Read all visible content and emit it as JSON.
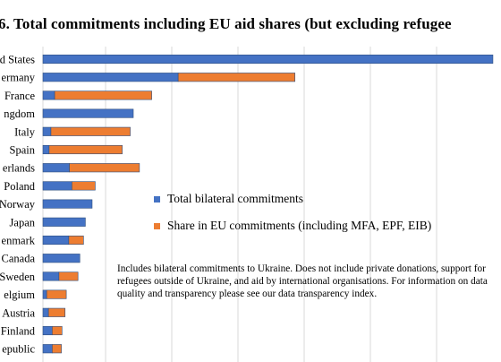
{
  "title": "6. Total commitments including EU aid shares (but excluding refugee",
  "legend": [
    {
      "label": "Total bilateral commitments",
      "color": "#4472C4"
    },
    {
      "label": "Share in EU commitments (including MFA, EPF, EIB)",
      "color": "#ED7D31"
    }
  ],
  "note": "Includes bilateral commitments to Ukraine. Does not include private donations, support for refugees outside of Ukraine, and aid by international organisations. For information on data quality and transparency please see our data transparency index.",
  "chart_data": {
    "type": "bar",
    "orientation": "horizontal",
    "stacked": true,
    "categories": [
      "d States",
      "ermany",
      "France",
      "ngdom",
      "Italy",
      "Spain",
      "erlands",
      "Poland",
      "Norway",
      "Japan",
      "enmark",
      "Canada",
      "Sweden",
      "elgium",
      "Austria",
      "Finland",
      "epublic"
    ],
    "series": [
      {
        "name": "Total bilateral commitments",
        "color": "#4472C4",
        "values": [
          73.2,
          22.0,
          1.9,
          14.7,
          1.3,
          1.0,
          4.3,
          4.7,
          8.0,
          6.9,
          4.2,
          6.0,
          2.6,
          0.6,
          0.9,
          1.5,
          1.5
        ]
      },
      {
        "name": "Share in EU commitments (including MFA, EPF, EIB)",
        "color": "#ED7D31",
        "values": [
          0.0,
          19.0,
          15.8,
          0.0,
          12.9,
          11.9,
          11.4,
          3.8,
          0.0,
          0.0,
          2.4,
          0.0,
          3.1,
          3.2,
          2.7,
          1.6,
          1.5
        ]
      }
    ],
    "xlim": [
      0,
      73.5
    ],
    "grid": true,
    "legend_position": "inside-right"
  }
}
